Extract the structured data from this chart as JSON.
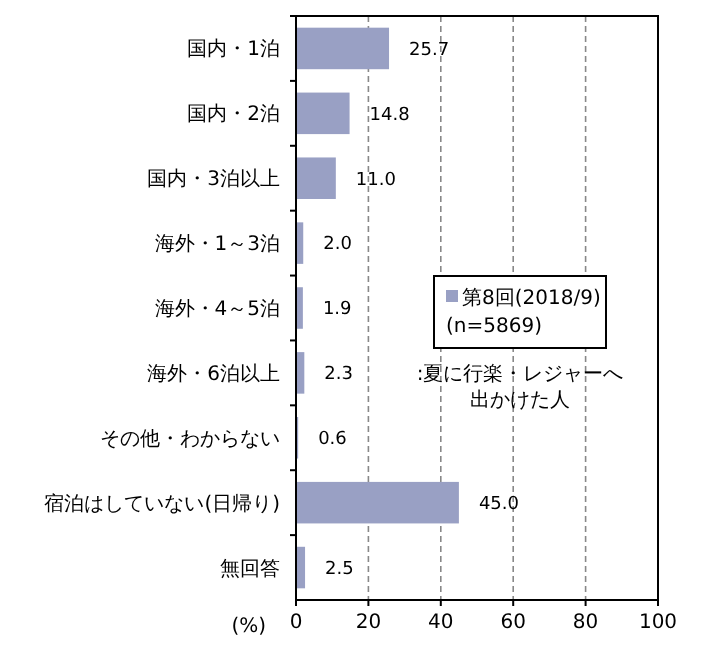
{
  "chart_data": {
    "type": "bar",
    "orientation": "horizontal",
    "xlabel": "(%)",
    "categories": [
      "国内・1泊",
      "国内・2泊",
      "国内・3泊以上",
      "海外・1～3泊",
      "海外・4～5泊",
      "海外・6泊以上",
      "その他・わからない",
      "宿泊はしていない(日帰り)",
      "無回答"
    ],
    "series": [
      {
        "name": "第8回(2018/9)\n(n=5869)",
        "color": "#99a0c4",
        "values": [
          25.7,
          14.8,
          11.0,
          2.0,
          1.9,
          2.3,
          0.6,
          45.0,
          2.5
        ],
        "value_labels": [
          "25.7",
          "14.8",
          "11.0",
          "2.0",
          "1.9",
          "2.3",
          "0.6",
          "45.0",
          "2.5"
        ]
      }
    ],
    "xlim": [
      0,
      100
    ],
    "xticks": [
      0,
      20,
      40,
      60,
      80,
      100
    ],
    "grid": "x",
    "legend": "right",
    "annotations": [
      ":夏に行楽・レジャーへ出かけた人"
    ]
  }
}
